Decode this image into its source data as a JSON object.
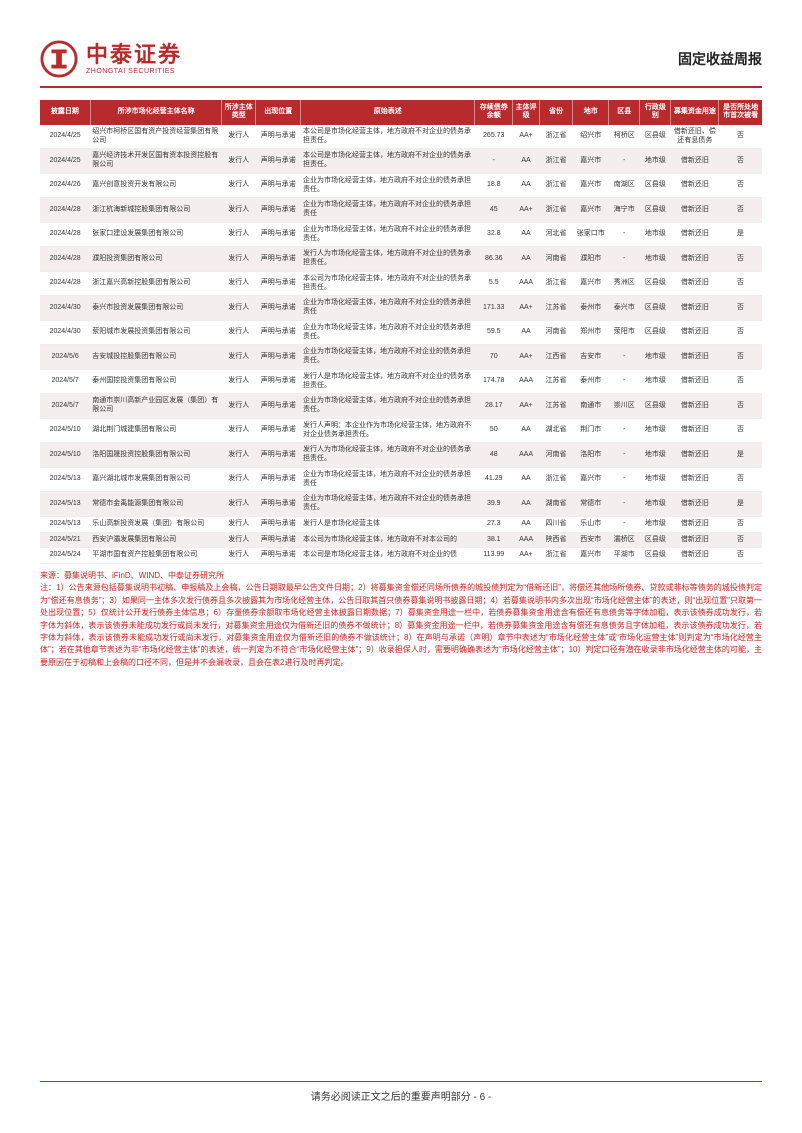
{
  "header": {
    "logo_cn": "中泰证券",
    "logo_en": "ZHONGTAI SECURITIES",
    "report_title": "固定收益周报"
  },
  "colors": {
    "brand": "#b82a2c",
    "alt_row": "#f5eeee",
    "note_text": "#c22222"
  },
  "table": {
    "columns": [
      "披露日期",
      "所涉市场化经营主体名称",
      "所涉主体类型",
      "出现位置",
      "原始表述",
      "存续债券余额",
      "主体评级",
      "省份",
      "地市",
      "区县",
      "行政级别",
      "募集资金用途",
      "是否所处地市首次被看"
    ],
    "rows": [
      [
        "2024/4/25",
        "绍兴市柯桥区国有资产投资经营集团有限公司",
        "发行人",
        "声明与承诺",
        "本公司是市场化经营主体，地方政府不对企业的债务承担责任。",
        "265.73",
        "AA+",
        "浙江省",
        "绍兴市",
        "柯桥区",
        "区县级",
        "借新还旧、偿还有息债务",
        "否"
      ],
      [
        "2024/4/25",
        "嘉兴经济技术开发区国有资本投资控股有限公司",
        "发行人",
        "声明与承诺",
        "本公司是市场化经营主体，地方政府不对企业的债务承担责任。",
        "-",
        "AA",
        "浙江省",
        "嘉兴市",
        "-",
        "地市级",
        "借新还旧",
        "否"
      ],
      [
        "2024/4/26",
        "嘉兴创意投资开发有限公司",
        "发行人",
        "声明与承诺",
        "企业为市场化经营主体，地方政府不对企业的债务承担责任。",
        "18.8",
        "AA",
        "浙江省",
        "嘉兴市",
        "南湖区",
        "区县级",
        "借新还旧",
        "否"
      ],
      [
        "2024/4/28",
        "浙江杭海新城控股集团有限公司",
        "发行人",
        "声明与承诺",
        "企业为市场化经营主体，地方政府不对企业的债务承担责任",
        "45",
        "AA+",
        "浙江省",
        "嘉兴市",
        "海宁市",
        "区县级",
        "借新还旧",
        "否"
      ],
      [
        "2024/4/28",
        "张家口建设发展集团有限公司",
        "发行人",
        "声明与承诺",
        "企业为市场化经营主体，地方政府不对企业的债务承担责任。",
        "32.8",
        "AA",
        "河北省",
        "张家口市",
        "-",
        "地市级",
        "借新还旧",
        "是"
      ],
      [
        "2024/4/28",
        "濮阳投资集团有限公司",
        "发行人",
        "声明与承诺",
        "发行人为市场化经营主体，地方政府不对企业的债务承担责任。",
        "86.36",
        "AA",
        "河南省",
        "濮阳市",
        "-",
        "地市级",
        "借新还旧",
        "否"
      ],
      [
        "2024/4/28",
        "浙江嘉兴高新控股集团有限公司",
        "发行人",
        "声明与承诺",
        "本公司为市场化经营主体，地方政府不对企业的债务承担责任。",
        "5.5",
        "AAA",
        "浙江省",
        "嘉兴市",
        "秀洲区",
        "区县级",
        "借新还旧",
        "否"
      ],
      [
        "2024/4/30",
        "泰兴市投资发展集团有限公司",
        "发行人",
        "声明与承诺",
        "企业为市场化经营主体，地方政府不对企业的债务承担责任",
        "171.33",
        "AA+",
        "江苏省",
        "泰州市",
        "泰兴市",
        "区县级",
        "借新还旧",
        "否"
      ],
      [
        "2024/4/30",
        "荥阳城市发展投资集团有限公司",
        "发行人",
        "声明与承诺",
        "企业为市场化经营主体，地方政府不对企业的债务承担责任。",
        "59.5",
        "AA",
        "河南省",
        "郑州市",
        "荥阳市",
        "区县级",
        "借新还旧",
        "否"
      ],
      [
        "2024/5/6",
        "吉安城投控股集团有限公司",
        "发行人",
        "声明与承诺",
        "企业为市场化经营主体，地方政府不对企业的债务承担责任。",
        "70",
        "AA+",
        "江西省",
        "吉安市",
        "-",
        "地市级",
        "借新还旧",
        "否"
      ],
      [
        "2024/5/7",
        "泰州国控投资集团有限公司",
        "发行人",
        "声明与承诺",
        "发行人是市场化经营主体，地方政府不对企业的债务承担责任。",
        "174.78",
        "AAA",
        "江苏省",
        "泰州市",
        "-",
        "地市级",
        "借新还旧",
        "否"
      ],
      [
        "2024/5/7",
        "南通市崇川高新产业园区发展（集团）有限公司",
        "发行人",
        "声明与承诺",
        "企业为市场化经营主体，地方政府不对企业的债务承担责任。",
        "28.17",
        "AA+",
        "江苏省",
        "南通市",
        "崇川区",
        "区县级",
        "借新还旧",
        "否"
      ],
      [
        "2024/5/10",
        "湖北荆门城建集团有限公司",
        "发行人",
        "声明与承诺",
        "发行人声明：本企业作为市场化经营主体，地方政府不对企业债务承担责任。",
        "50",
        "AA",
        "湖北省",
        "荆门市",
        "-",
        "地市级",
        "借新还旧",
        "否"
      ],
      [
        "2024/5/10",
        "洛阳国晟投资控股集团有限公司",
        "发行人",
        "声明与承诺",
        "发行人为市场化经营主体，地方政府不对企业的债务承担责任。",
        "48",
        "AAA",
        "河南省",
        "洛阳市",
        "-",
        "地市级",
        "借新还旧",
        "是"
      ],
      [
        "2024/5/13",
        "嘉兴湖北城市发展集团有限公司",
        "发行人",
        "声明与承诺",
        "企业为市场化经营主体，地方政府不对企业的债务承担责任",
        "41.29",
        "AA",
        "浙江省",
        "嘉兴市",
        "-",
        "地市级",
        "借新还旧",
        "否"
      ],
      [
        "2024/5/13",
        "常德市金禹能源集团有限公司",
        "发行人",
        "声明与承诺",
        "企业为市场化经营主体，地方政府不对企业的债务承担责任。",
        "39.9",
        "AA",
        "湖南省",
        "常德市",
        "-",
        "地市级",
        "借新还旧",
        "是"
      ],
      [
        "2024/5/13",
        "乐山高新投资发展（集团）有限公司",
        "发行人",
        "声明与承诺",
        "发行人是市场化经营主体",
        "27.3",
        "AA",
        "四川省",
        "乐山市",
        "-",
        "地市级",
        "借新还旧",
        "否"
      ],
      [
        "2024/5/21",
        "西安沪灞发展集团有限公司",
        "发行人",
        "声明与承诺",
        "本公司为市场化经营主体，地方政府不对本公司的",
        "38.1",
        "AAA",
        "陕西省",
        "西安市",
        "灞桥区",
        "区县级",
        "借新还旧",
        "否"
      ],
      [
        "2024/5/24",
        "平湖市国有资产控股集团有限公司",
        "发行人",
        "声明与承诺",
        "本公司是市场化经营主体，地方政府不对企业的债",
        "113.99",
        "AA+",
        "浙江省",
        "嘉兴市",
        "平湖市",
        "区县级",
        "借新还旧",
        "否"
      ]
    ],
    "left_align_cols": [
      1,
      4
    ],
    "header_bg": "#b82a2c",
    "header_color": "#ffffff",
    "font_size": 7
  },
  "notes": {
    "source": "来源：募集说明书、iFinD、WIND、中泰证券研究所",
    "body": "注：1）公告来源包括募集说明书初稿、申报稿及上会稿，公告日期取最早公告文件日期；2）将募集资金偿还同场所债券的城投债判定为“借新还旧”，将偿还其他场所债券、贷款或非标等债务的城投债判定为“偿还有息债务”；3）如果同一主体多次发行债券且多次披露其为市场化经营主体，公告日取其首只债券募集说明书披露日期；4）若募集说明书内多次出现“市场化经营主体”的表述，则“出现位置”只取第一处出现位置；5）仅统计公开发行债券主体信息；6）存量债券余额取市场化经营主体披露日期数据；7）募集资金用途一栏中，若债券募集资金用途含有偿还有息债务等字体加粗，表示该债券成功发行，若字体为斜体，表示该债券未能成功发行或尚未发行，对募集资金用途仅为借新还旧的债券不做统计；8）募集资金用途一栏中，若债券募集资金用途含有偿还有息债务且字体加粗，表示该债券成功发行，若字体为斜体，表示该债券未能成功发行或尚未发行，对募集资金用途仅为借新还旧的债券不做该统计；8）在声明与承诺（声明）章节中表述为“市场化经营主体”或“市场化运营主体”则判定为“市场化经营主体”；若在其他章节表述为非“市场化经营主体”的表述，统一判定为不符合“市场化经营主体”；9）收录担保人时，需要明确确表述为“市场化经营主体”；10）判定口径有潜在收录非市场化经营主体的可能，主要原因在于初稿和上会稿的口径不同，但是并不会漏收录，且会在表2进行及时再判定。"
  },
  "footer": {
    "text": "请务必阅读正文之后的重要声明部分",
    "page": "- 6 -"
  }
}
